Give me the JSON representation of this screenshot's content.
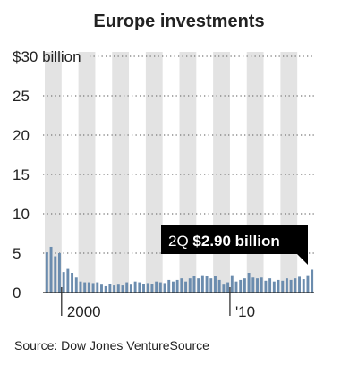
{
  "chart_data": {
    "type": "bar",
    "title": "Europe investments",
    "source": "Source: Dow Jones VentureSource",
    "y_axis": {
      "min": 0,
      "max": 30,
      "ticks": [
        {
          "value": 30,
          "label": "$30 billion"
        },
        {
          "value": 25,
          "label": "25"
        },
        {
          "value": 20,
          "label": "20"
        },
        {
          "value": 15,
          "label": "15"
        },
        {
          "value": 10,
          "label": "10"
        },
        {
          "value": 5,
          "label": "5"
        },
        {
          "value": 0,
          "label": "0"
        }
      ]
    },
    "x_axis": {
      "ticks": [
        {
          "quarter_index": 4,
          "label": "2000"
        },
        {
          "quarter_index": 44,
          "label": "'10"
        }
      ]
    },
    "first_year": 1999,
    "alternating_year_shading": true,
    "grid": "dotted horizontal",
    "annotation": {
      "prefix": "2Q ",
      "value": "$2.90 billion"
    },
    "series": [
      {
        "color": "#6b8cae",
        "values": [
          5.1,
          5.8,
          4.6,
          5.0,
          2.6,
          3.0,
          2.5,
          1.9,
          1.4,
          1.3,
          1.3,
          1.2,
          1.3,
          1.0,
          0.8,
          1.1,
          0.9,
          1.0,
          0.9,
          1.3,
          1.0,
          1.4,
          1.3,
          1.1,
          1.2,
          1.1,
          1.4,
          1.3,
          1.2,
          1.6,
          1.4,
          1.6,
          1.8,
          1.4,
          1.8,
          2.1,
          1.8,
          2.2,
          2.1,
          1.8,
          2.1,
          1.6,
          1.0,
          1.3,
          2.2,
          1.4,
          1.6,
          1.8,
          2.5,
          1.9,
          1.8,
          1.9,
          1.5,
          1.8,
          1.4,
          1.6,
          1.5,
          1.8,
          1.6,
          1.8,
          2.0,
          1.7,
          2.2,
          2.9
        ]
      }
    ]
  }
}
